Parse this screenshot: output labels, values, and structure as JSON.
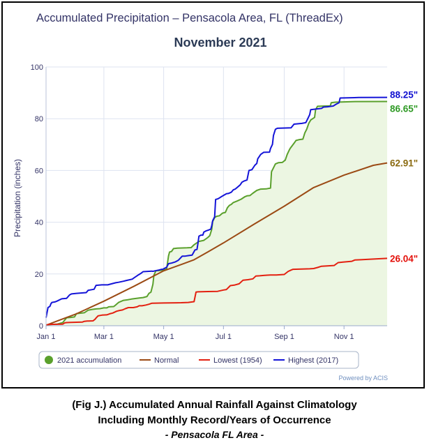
{
  "caption": {
    "line1": "(Fig J.) Accumulated Annual Rainfall Against  Climatology",
    "line2": "Including Monthly Record/Years of Occurrence",
    "line3": "- Pensacola FL Area -"
  },
  "chart_data": {
    "type": "line",
    "title": "Accumulated Precipitation – Pensacola Area, FL (ThreadEx)",
    "subtitle": "November 2021",
    "xlabel": "",
    "ylabel": "Precipitation (inches)",
    "xlim": [
      1,
      349
    ],
    "ylim": [
      0,
      100
    ],
    "grid": true,
    "legend_position": "bottom",
    "credit": "Powered by ACIS",
    "x_ticks": [
      {
        "label": "Jan 1",
        "day": 1
      },
      {
        "label": "Mar 1",
        "day": 60
      },
      {
        "label": "May 1",
        "day": 121
      },
      {
        "label": "Jul 1",
        "day": 182
      },
      {
        "label": "Sep 1",
        "day": 244
      },
      {
        "label": "Nov 1",
        "day": 305
      }
    ],
    "y_ticks": [
      0,
      20,
      40,
      60,
      80,
      100
    ],
    "series": [
      {
        "name": "2021 accumulation",
        "color": "#5aa02c",
        "area_fill": "#ecf6e2",
        "end_label": "86.65\"",
        "points": [
          [
            1,
            0.3
          ],
          [
            6,
            0.5
          ],
          [
            12,
            0.6
          ],
          [
            18,
            1.2
          ],
          [
            22,
            3.1
          ],
          [
            26,
            3.2
          ],
          [
            30,
            3.4
          ],
          [
            32,
            4.7
          ],
          [
            40,
            5.0
          ],
          [
            44,
            6.0
          ],
          [
            48,
            6.3
          ],
          [
            52,
            6.5
          ],
          [
            56,
            6.6
          ],
          [
            60,
            6.9
          ],
          [
            63,
            6.9
          ],
          [
            65,
            7.3
          ],
          [
            70,
            7.4
          ],
          [
            72,
            8.0
          ],
          [
            75,
            9.0
          ],
          [
            80,
            9.8
          ],
          [
            84,
            10.0
          ],
          [
            88,
            10.3
          ],
          [
            92,
            10.5
          ],
          [
            96,
            10.7
          ],
          [
            100,
            10.9
          ],
          [
            104,
            11.3
          ],
          [
            106,
            12.5
          ],
          [
            108,
            13.0
          ],
          [
            110,
            16.0
          ],
          [
            111,
            19.5
          ],
          [
            113,
            21.2
          ],
          [
            116,
            21.3
          ],
          [
            120,
            21.5
          ],
          [
            122,
            21.7
          ],
          [
            124,
            21.8
          ],
          [
            126,
            27.0
          ],
          [
            127,
            28.5
          ],
          [
            129,
            28.7
          ],
          [
            131,
            29.8
          ],
          [
            135,
            30.0
          ],
          [
            145,
            30.1
          ],
          [
            149,
            30.2
          ],
          [
            152,
            31.3
          ],
          [
            157,
            32.6
          ],
          [
            162,
            33.0
          ],
          [
            166,
            34.1
          ],
          [
            168,
            34.8
          ],
          [
            170,
            37.2
          ],
          [
            171,
            40.3
          ],
          [
            173,
            41.8
          ],
          [
            175,
            42.3
          ],
          [
            178,
            42.5
          ],
          [
            181,
            43.5
          ],
          [
            184,
            43.8
          ],
          [
            186,
            45.6
          ],
          [
            188,
            46.5
          ],
          [
            190,
            46.9
          ],
          [
            192,
            47.6
          ],
          [
            196,
            48.2
          ],
          [
            200,
            48.9
          ],
          [
            204,
            49.9
          ],
          [
            206,
            50.2
          ],
          [
            209,
            50.3
          ],
          [
            212,
            51.2
          ],
          [
            216,
            52.3
          ],
          [
            220,
            52.8
          ],
          [
            226,
            52.9
          ],
          [
            230,
            53.2
          ],
          [
            231,
            59.5
          ],
          [
            233,
            61.0
          ],
          [
            235,
            62.5
          ],
          [
            238,
            63.0
          ],
          [
            242,
            63.1
          ],
          [
            245,
            64.0
          ],
          [
            247,
            66.2
          ],
          [
            249,
            67.8
          ],
          [
            250,
            68.5
          ],
          [
            254,
            70.5
          ],
          [
            256,
            71.6
          ],
          [
            259,
            71.9
          ],
          [
            263,
            72.1
          ],
          [
            265,
            74.5
          ],
          [
            267,
            76.0
          ],
          [
            269,
            78.2
          ],
          [
            271,
            79.5
          ],
          [
            275,
            80.5
          ],
          [
            276,
            83.5
          ],
          [
            278,
            84.8
          ],
          [
            291,
            85.0
          ],
          [
            292,
            86.2
          ],
          [
            296,
            86.4
          ],
          [
            305,
            86.5
          ],
          [
            313,
            86.6
          ],
          [
            349,
            86.65
          ]
        ]
      },
      {
        "name": "Normal",
        "color": "#9b4a14",
        "area_fill": "",
        "end_label": "62.91\"",
        "points": [
          [
            1,
            0.2
          ],
          [
            15,
            2.2
          ],
          [
            32,
            4.6
          ],
          [
            60,
            9.5
          ],
          [
            91,
            15.3
          ],
          [
            121,
            21.2
          ],
          [
            140,
            23.8
          ],
          [
            152,
            25.5
          ],
          [
            166,
            28.5
          ],
          [
            182,
            32.0
          ],
          [
            213,
            39.2
          ],
          [
            244,
            46.2
          ],
          [
            274,
            53.4
          ],
          [
            305,
            58.2
          ],
          [
            335,
            62.0
          ],
          [
            349,
            62.91
          ]
        ]
      },
      {
        "name": "Lowest (1954)",
        "color": "#e32010",
        "area_fill": "",
        "end_label": "26.04\"",
        "points": [
          [
            1,
            0.2
          ],
          [
            4,
            0.5
          ],
          [
            18,
            0.6
          ],
          [
            20,
            1.1
          ],
          [
            22,
            1.2
          ],
          [
            26,
            1.3
          ],
          [
            38,
            1.4
          ],
          [
            40,
            1.7
          ],
          [
            43,
            1.8
          ],
          [
            49,
            1.9
          ],
          [
            51,
            2.5
          ],
          [
            52,
            3.0
          ],
          [
            54,
            3.8
          ],
          [
            58,
            4.1
          ],
          [
            63,
            4.2
          ],
          [
            66,
            4.6
          ],
          [
            69,
            4.9
          ],
          [
            73,
            5.6
          ],
          [
            76,
            5.9
          ],
          [
            79,
            6.1
          ],
          [
            82,
            6.6
          ],
          [
            85,
            7.0
          ],
          [
            90,
            7.0
          ],
          [
            94,
            7.3
          ],
          [
            96,
            7.7
          ],
          [
            99,
            7.7
          ],
          [
            103,
            8.0
          ],
          [
            106,
            8.3
          ],
          [
            109,
            8.7
          ],
          [
            121,
            8.8
          ],
          [
            139,
            8.9
          ],
          [
            146,
            9.0
          ],
          [
            152,
            9.3
          ],
          [
            154,
            13.0
          ],
          [
            156,
            13.1
          ],
          [
            166,
            13.2
          ],
          [
            176,
            13.3
          ],
          [
            182,
            13.8
          ],
          [
            185,
            14.0
          ],
          [
            189,
            15.5
          ],
          [
            193,
            15.7
          ],
          [
            198,
            16.2
          ],
          [
            202,
            17.6
          ],
          [
            207,
            17.8
          ],
          [
            212,
            18.1
          ],
          [
            215,
            19.2
          ],
          [
            219,
            19.3
          ],
          [
            224,
            19.5
          ],
          [
            230,
            19.6
          ],
          [
            236,
            19.6
          ],
          [
            244,
            19.8
          ],
          [
            248,
            21.0
          ],
          [
            251,
            21.5
          ],
          [
            253,
            21.8
          ],
          [
            270,
            22.0
          ],
          [
            274,
            22.1
          ],
          [
            278,
            22.5
          ],
          [
            282,
            23.0
          ],
          [
            295,
            23.3
          ],
          [
            299,
            24.4
          ],
          [
            304,
            24.6
          ],
          [
            313,
            24.9
          ],
          [
            316,
            25.4
          ],
          [
            322,
            25.5
          ],
          [
            337,
            25.8
          ],
          [
            349,
            26.04
          ]
        ]
      },
      {
        "name": "Highest (2017)",
        "color": "#1414d8",
        "area_fill": "",
        "end_label": "88.25\"",
        "points": [
          [
            1,
            3.1
          ],
          [
            3,
            7.0
          ],
          [
            5,
            7.5
          ],
          [
            6,
            8.5
          ],
          [
            7,
            9.0
          ],
          [
            10,
            9.2
          ],
          [
            12,
            9.5
          ],
          [
            17,
            10.4
          ],
          [
            22,
            10.6
          ],
          [
            25,
            11.9
          ],
          [
            27,
            12.3
          ],
          [
            32,
            12.5
          ],
          [
            42,
            12.8
          ],
          [
            44,
            13.7
          ],
          [
            50,
            14.1
          ],
          [
            52,
            15.6
          ],
          [
            58,
            15.8
          ],
          [
            64,
            15.8
          ],
          [
            68,
            16.2
          ],
          [
            72,
            16.6
          ],
          [
            75,
            16.8
          ],
          [
            80,
            17.2
          ],
          [
            83,
            17.5
          ],
          [
            89,
            18.0
          ],
          [
            90,
            18.3
          ],
          [
            95,
            19.6
          ],
          [
            96,
            19.8
          ],
          [
            98,
            20.3
          ],
          [
            100,
            20.9
          ],
          [
            109,
            21.1
          ],
          [
            110,
            21.0
          ],
          [
            112,
            21.2
          ],
          [
            116,
            21.5
          ],
          [
            119,
            21.8
          ],
          [
            120,
            21.8
          ],
          [
            124,
            22.6
          ],
          [
            126,
            24.0
          ],
          [
            129,
            24.2
          ],
          [
            133,
            24.7
          ],
          [
            136,
            25.3
          ],
          [
            140,
            26.9
          ],
          [
            143,
            26.9
          ],
          [
            146,
            27.1
          ],
          [
            150,
            27.3
          ],
          [
            153,
            29.3
          ],
          [
            155,
            29.5
          ],
          [
            156,
            31.9
          ],
          [
            157,
            34.6
          ],
          [
            159,
            35.0
          ],
          [
            161,
            35.0
          ],
          [
            162,
            36.2
          ],
          [
            164,
            36.6
          ],
          [
            167,
            37.0
          ],
          [
            169,
            37.3
          ],
          [
            170,
            38.6
          ],
          [
            171,
            40.6
          ],
          [
            173,
            42.1
          ],
          [
            174,
            48.8
          ],
          [
            176,
            49.0
          ],
          [
            178,
            49.4
          ],
          [
            180,
            49.9
          ],
          [
            185,
            51.0
          ],
          [
            187,
            51.1
          ],
          [
            190,
            51.6
          ],
          [
            192,
            52.5
          ],
          [
            194,
            52.8
          ],
          [
            199,
            54.4
          ],
          [
            201,
            55.5
          ],
          [
            203,
            55.9
          ],
          [
            206,
            56.3
          ],
          [
            208,
            60.0
          ],
          [
            211,
            60.3
          ],
          [
            214,
            62.0
          ],
          [
            216,
            62.7
          ],
          [
            217,
            64.5
          ],
          [
            220,
            66.2
          ],
          [
            223,
            67.0
          ],
          [
            229,
            67.1
          ],
          [
            230,
            68.5
          ],
          [
            232,
            70.1
          ],
          [
            233,
            73.5
          ],
          [
            235,
            75.9
          ],
          [
            237,
            76.3
          ],
          [
            251,
            76.5
          ],
          [
            254,
            77.9
          ],
          [
            262,
            78.2
          ],
          [
            266,
            78.5
          ],
          [
            268,
            80.0
          ],
          [
            270,
            81.6
          ],
          [
            271,
            83.5
          ],
          [
            282,
            84.0
          ],
          [
            284,
            84.5
          ],
          [
            288,
            84.6
          ],
          [
            294,
            84.9
          ],
          [
            297,
            85.6
          ],
          [
            300,
            86.2
          ],
          [
            301,
            88.0
          ],
          [
            320,
            88.2
          ],
          [
            349,
            88.25
          ]
        ]
      }
    ]
  }
}
